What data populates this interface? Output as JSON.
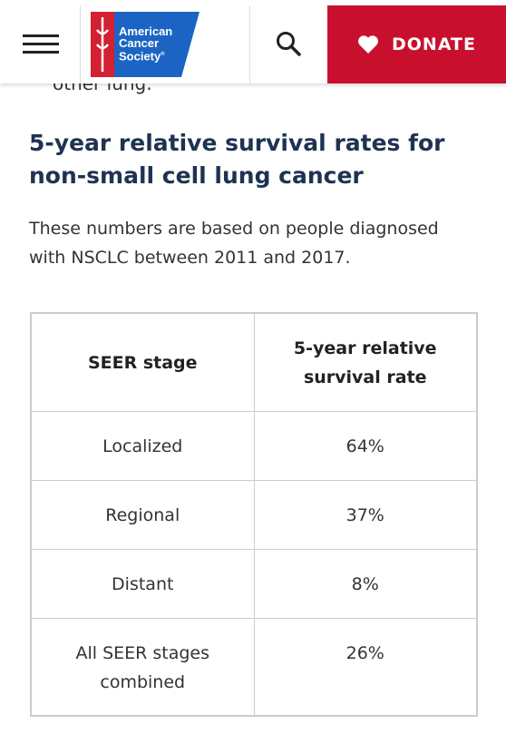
{
  "header": {
    "logo": {
      "lines": [
        "American",
        "Cancer",
        "Society"
      ],
      "mark": "®"
    },
    "donate": "DONATE"
  },
  "content": {
    "cut_text": "other lung.",
    "title": "5-year relative survival rates for non-small cell lung cancer",
    "intro": "These numbers are based on people diagnosed with NSCLC between 2011 and 2017.",
    "table": {
      "headers": [
        "SEER stage",
        "5-year relative survival rate"
      ],
      "rows": [
        [
          "Localized",
          "64%"
        ],
        [
          "Regional",
          "37%"
        ],
        [
          "Distant",
          "8%"
        ],
        [
          "All SEER stages combined",
          "26%"
        ]
      ]
    }
  }
}
